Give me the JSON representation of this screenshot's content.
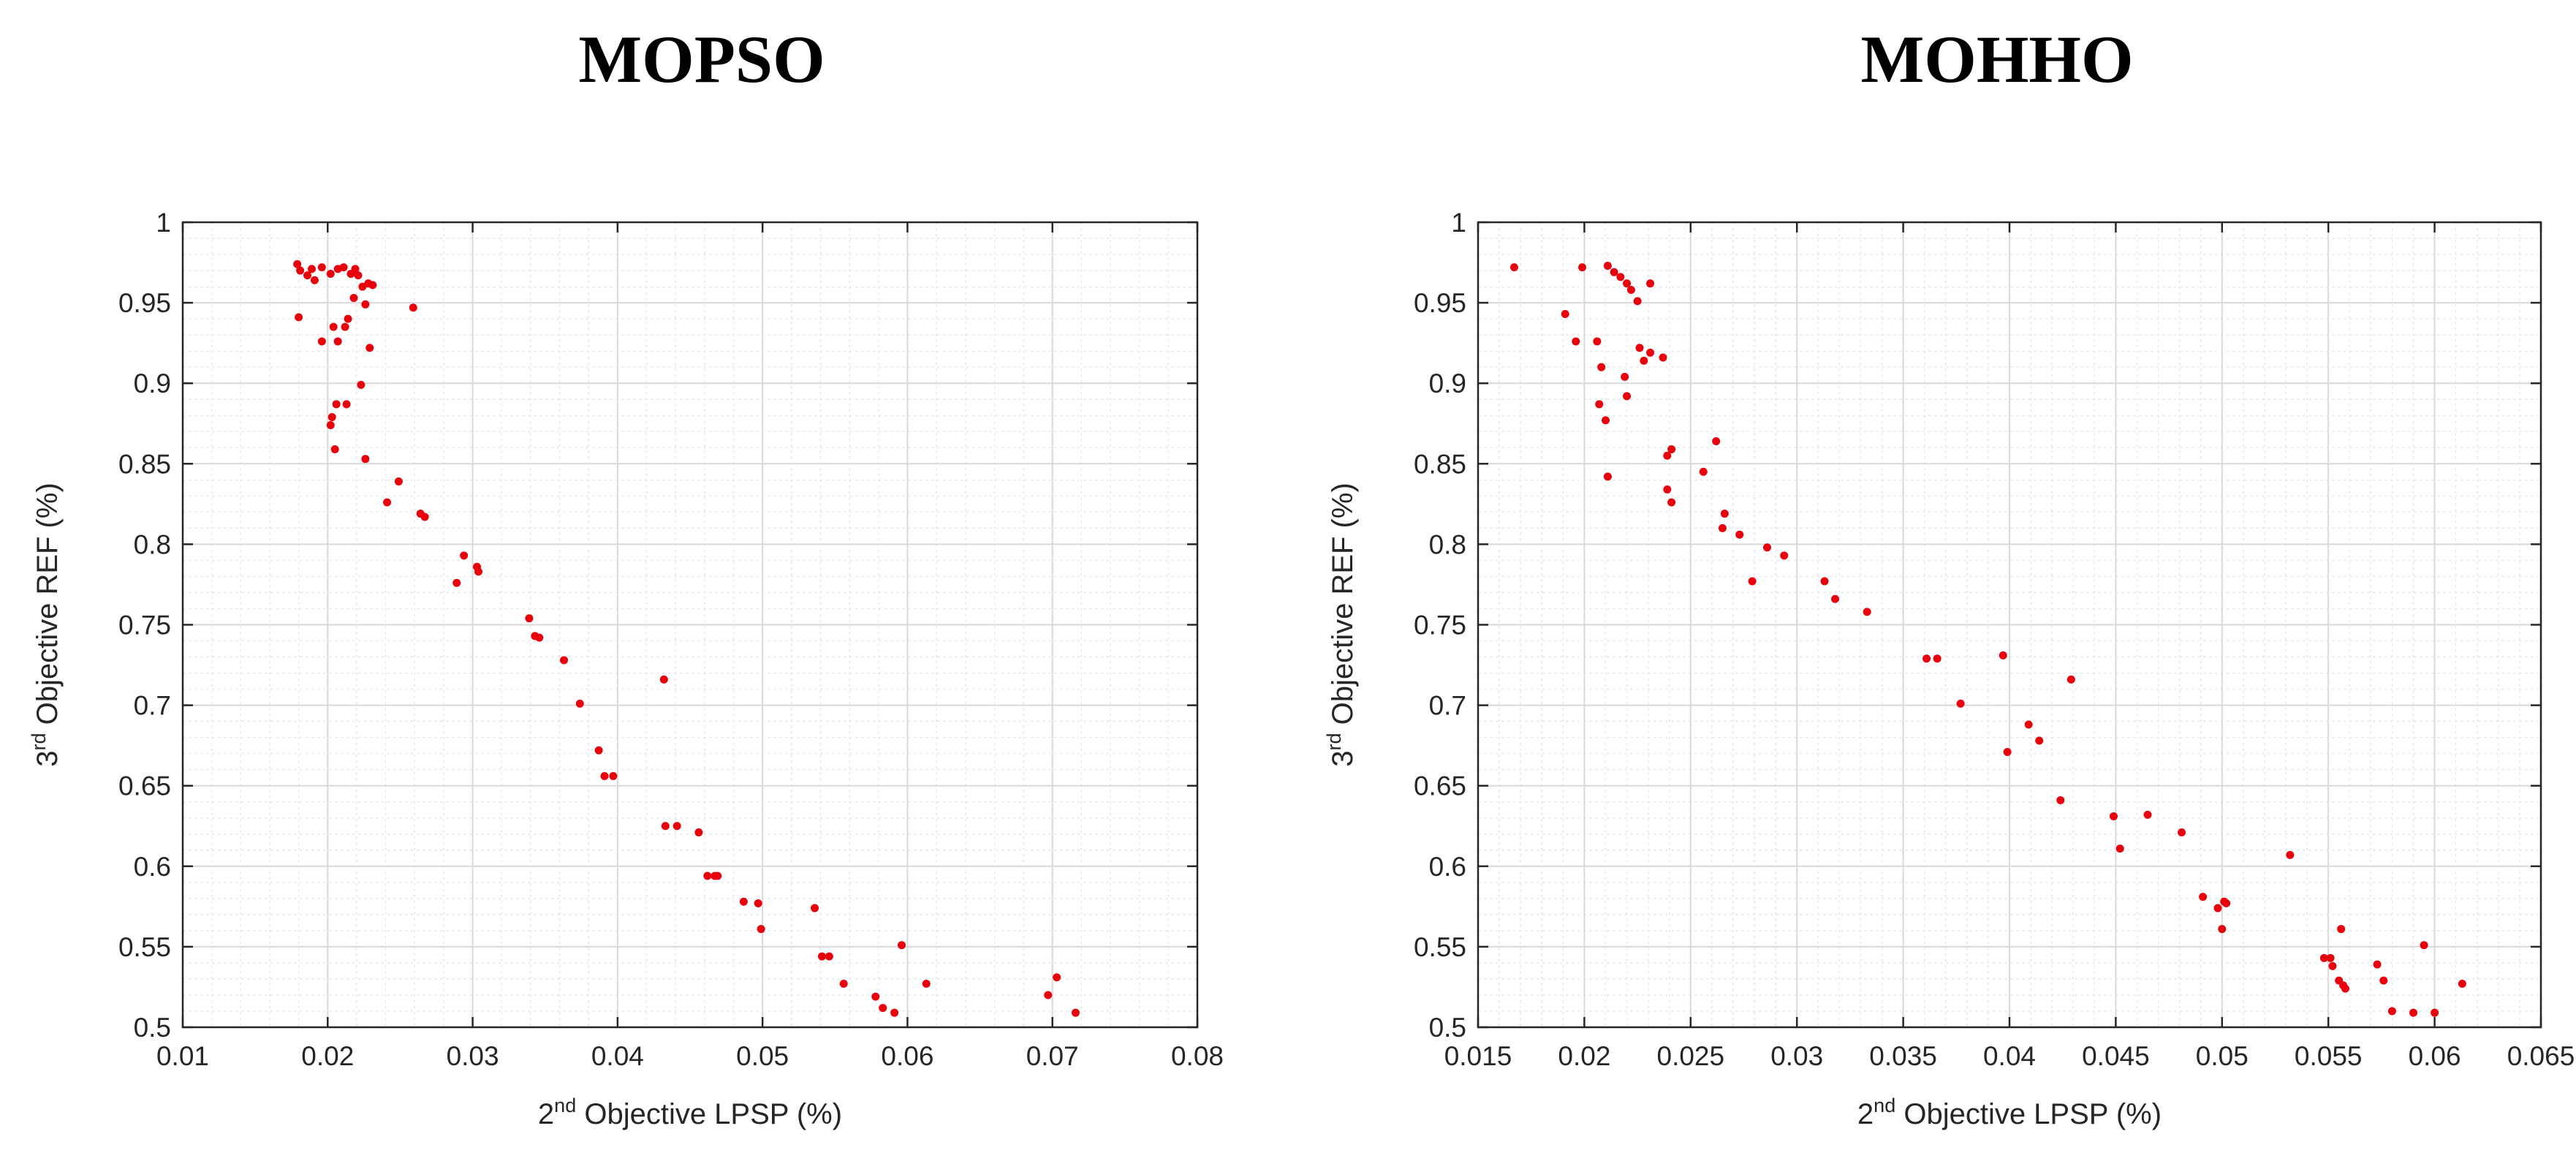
{
  "chart_data": [
    {
      "type": "scatter",
      "title": "MOPSO",
      "xlabel": {
        "prefix": "2",
        "sup": "nd",
        "suffix": " Objective LPSP (%)"
      },
      "ylabel": {
        "prefix": "3",
        "sup": "rd",
        "suffix": " Objective REF (%)"
      },
      "xlim": [
        0.01,
        0.08
      ],
      "ylim": [
        0.5,
        1.0
      ],
      "xticks": [
        0.01,
        0.02,
        0.03,
        0.04,
        0.05,
        0.06,
        0.07,
        0.08
      ],
      "xtick_labels": [
        "0.01",
        "0.02",
        "0.03",
        "0.04",
        "0.05",
        "0.06",
        "0.07",
        "0.08"
      ],
      "yticks": [
        0.5,
        0.55,
        0.6,
        0.65,
        0.7,
        0.75,
        0.8,
        0.85,
        0.9,
        0.95,
        1.0
      ],
      "ytick_labels": [
        "0.5",
        "0.55",
        "0.6",
        "0.65",
        "0.7",
        "0.75",
        "0.8",
        "0.85",
        "0.9",
        "0.95",
        "1"
      ],
      "grid": true,
      "minor_grid": true,
      "marker_color": "#e8000b",
      "points": [
        [
          0.0179,
          0.974
        ],
        [
          0.0181,
          0.97
        ],
        [
          0.0186,
          0.967
        ],
        [
          0.0189,
          0.971
        ],
        [
          0.0191,
          0.964
        ],
        [
          0.0196,
          0.972
        ],
        [
          0.0202,
          0.968
        ],
        [
          0.0207,
          0.971
        ],
        [
          0.0211,
          0.972
        ],
        [
          0.0216,
          0.968
        ],
        [
          0.0219,
          0.971
        ],
        [
          0.0221,
          0.967
        ],
        [
          0.0224,
          0.96
        ],
        [
          0.0228,
          0.962
        ],
        [
          0.0231,
          0.961
        ],
        [
          0.0218,
          0.953
        ],
        [
          0.0226,
          0.949
        ],
        [
          0.0259,
          0.947
        ],
        [
          0.018,
          0.941
        ],
        [
          0.0212,
          0.935
        ],
        [
          0.0204,
          0.935
        ],
        [
          0.0214,
          0.94
        ],
        [
          0.0196,
          0.926
        ],
        [
          0.0207,
          0.926
        ],
        [
          0.0229,
          0.922
        ],
        [
          0.0223,
          0.899
        ],
        [
          0.0206,
          0.887
        ],
        [
          0.0213,
          0.887
        ],
        [
          0.0203,
          0.879
        ],
        [
          0.0202,
          0.874
        ],
        [
          0.0205,
          0.859
        ],
        [
          0.0226,
          0.853
        ],
        [
          0.0249,
          0.839
        ],
        [
          0.0241,
          0.826
        ],
        [
          0.0264,
          0.819
        ],
        [
          0.0267,
          0.817
        ],
        [
          0.0294,
          0.793
        ],
        [
          0.0303,
          0.786
        ],
        [
          0.0304,
          0.783
        ],
        [
          0.0289,
          0.776
        ],
        [
          0.0339,
          0.754
        ],
        [
          0.0343,
          0.743
        ],
        [
          0.0346,
          0.742
        ],
        [
          0.0363,
          0.728
        ],
        [
          0.0432,
          0.716
        ],
        [
          0.0374,
          0.701
        ],
        [
          0.0387,
          0.672
        ],
        [
          0.0391,
          0.656
        ],
        [
          0.0397,
          0.656
        ],
        [
          0.0433,
          0.625
        ],
        [
          0.0441,
          0.625
        ],
        [
          0.0456,
          0.621
        ],
        [
          0.0462,
          0.594
        ],
        [
          0.0467,
          0.594
        ],
        [
          0.0469,
          0.594
        ],
        [
          0.0487,
          0.578
        ],
        [
          0.0497,
          0.577
        ],
        [
          0.0536,
          0.574
        ],
        [
          0.0499,
          0.561
        ],
        [
          0.0596,
          0.551
        ],
        [
          0.0541,
          0.544
        ],
        [
          0.0546,
          0.544
        ],
        [
          0.0556,
          0.527
        ],
        [
          0.0613,
          0.527
        ],
        [
          0.0703,
          0.531
        ],
        [
          0.0578,
          0.519
        ],
        [
          0.0697,
          0.52
        ],
        [
          0.0583,
          0.512
        ],
        [
          0.0591,
          0.509
        ],
        [
          0.0716,
          0.509
        ]
      ]
    },
    {
      "type": "scatter",
      "title": "MOHHO",
      "xlabel": {
        "prefix": "2",
        "sup": "nd",
        "suffix": " Objective LPSP (%)"
      },
      "ylabel": {
        "prefix": "3",
        "sup": "rd",
        "suffix": " Objective REF (%)"
      },
      "xlim": [
        0.015,
        0.065
      ],
      "ylim": [
        0.5,
        1.0
      ],
      "xticks": [
        0.015,
        0.02,
        0.025,
        0.03,
        0.035,
        0.04,
        0.045,
        0.05,
        0.055,
        0.06,
        0.065
      ],
      "xtick_labels": [
        "0.015",
        "0.02",
        "0.025",
        "0.03",
        "0.035",
        "0.04",
        "0.045",
        "0.05",
        "0.055",
        "0.06",
        "0.065"
      ],
      "yticks": [
        0.5,
        0.55,
        0.6,
        0.65,
        0.7,
        0.75,
        0.8,
        0.85,
        0.9,
        0.95,
        1.0
      ],
      "ytick_labels": [
        "0.5",
        "0.55",
        "0.6",
        "0.65",
        "0.7",
        "0.75",
        "0.8",
        "0.85",
        "0.9",
        "0.95",
        "1"
      ],
      "grid": true,
      "minor_grid": true,
      "marker_color": "#e8000b",
      "points": [
        [
          0.0167,
          0.972
        ],
        [
          0.0199,
          0.972
        ],
        [
          0.0211,
          0.973
        ],
        [
          0.0214,
          0.969
        ],
        [
          0.0217,
          0.966
        ],
        [
          0.022,
          0.962
        ],
        [
          0.0222,
          0.958
        ],
        [
          0.0231,
          0.962
        ],
        [
          0.0225,
          0.951
        ],
        [
          0.0191,
          0.943
        ],
        [
          0.0196,
          0.926
        ],
        [
          0.0206,
          0.926
        ],
        [
          0.0226,
          0.922
        ],
        [
          0.0231,
          0.919
        ],
        [
          0.0237,
          0.916
        ],
        [
          0.0228,
          0.914
        ],
        [
          0.0208,
          0.91
        ],
        [
          0.0219,
          0.904
        ],
        [
          0.022,
          0.892
        ],
        [
          0.0207,
          0.887
        ],
        [
          0.021,
          0.877
        ],
        [
          0.0211,
          0.842
        ],
        [
          0.0262,
          0.864
        ],
        [
          0.0241,
          0.859
        ],
        [
          0.0239,
          0.855
        ],
        [
          0.0256,
          0.845
        ],
        [
          0.0239,
          0.834
        ],
        [
          0.0241,
          0.826
        ],
        [
          0.0266,
          0.819
        ],
        [
          0.0265,
          0.81
        ],
        [
          0.0273,
          0.806
        ],
        [
          0.0286,
          0.798
        ],
        [
          0.0294,
          0.793
        ],
        [
          0.0279,
          0.777
        ],
        [
          0.0313,
          0.777
        ],
        [
          0.0318,
          0.766
        ],
        [
          0.0333,
          0.758
        ],
        [
          0.0361,
          0.729
        ],
        [
          0.0366,
          0.729
        ],
        [
          0.0397,
          0.731
        ],
        [
          0.0429,
          0.716
        ],
        [
          0.0377,
          0.701
        ],
        [
          0.0409,
          0.688
        ],
        [
          0.0414,
          0.678
        ],
        [
          0.0399,
          0.671
        ],
        [
          0.0424,
          0.641
        ],
        [
          0.0449,
          0.631
        ],
        [
          0.0465,
          0.632
        ],
        [
          0.0452,
          0.611
        ],
        [
          0.0481,
          0.621
        ],
        [
          0.0532,
          0.607
        ],
        [
          0.0491,
          0.581
        ],
        [
          0.0498,
          0.574
        ],
        [
          0.0501,
          0.578
        ],
        [
          0.0502,
          0.577
        ],
        [
          0.05,
          0.561
        ],
        [
          0.0556,
          0.561
        ],
        [
          0.0595,
          0.551
        ],
        [
          0.0548,
          0.543
        ],
        [
          0.0551,
          0.543
        ],
        [
          0.0552,
          0.538
        ],
        [
          0.0573,
          0.539
        ],
        [
          0.0555,
          0.529
        ],
        [
          0.0557,
          0.526
        ],
        [
          0.0558,
          0.524
        ],
        [
          0.0576,
          0.529
        ],
        [
          0.0613,
          0.527
        ],
        [
          0.058,
          0.51
        ],
        [
          0.059,
          0.509
        ],
        [
          0.06,
          0.509
        ]
      ]
    }
  ]
}
